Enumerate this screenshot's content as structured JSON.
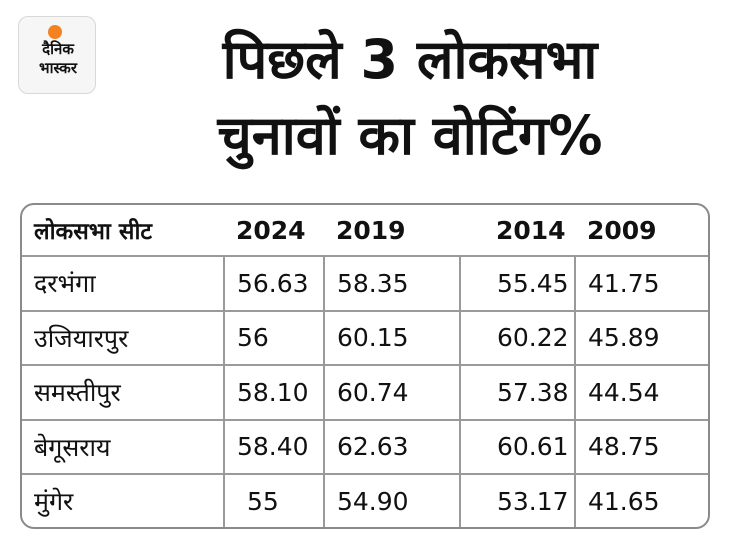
{
  "logo": {
    "line1": "दैनिक",
    "line2": "भास्कर"
  },
  "header": {
    "title_line1": "पिछले 3 लोकसभा",
    "title_line2": "चुनावों का वोटिंग%"
  },
  "colors": {
    "accent": "#f58220",
    "border": "#8a8a8a",
    "text": "#111111"
  },
  "chart_data": {
    "type": "table",
    "title": "पिछले 3 लोकसभा चुनावों का वोटिंग%",
    "columns": [
      "लोकसभा सीट",
      "2024",
      "2019",
      "2014",
      "2009"
    ],
    "rows": [
      [
        "दरभंगा",
        "56.63",
        "58.35",
        "55.45",
        "41.75"
      ],
      [
        "उजियारपुर",
        "56",
        "60.15",
        "60.22",
        "45.89"
      ],
      [
        "समस्तीपुर",
        "58.10",
        "60.74",
        "57.38",
        "44.54"
      ],
      [
        "बेगूसराय",
        "58.40",
        "62.63",
        "60.61",
        "48.75"
      ],
      [
        "मुंगेर",
        "55",
        "54.90",
        "53.17",
        "41.65"
      ]
    ]
  }
}
